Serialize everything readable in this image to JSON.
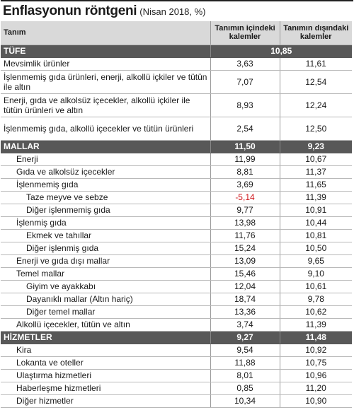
{
  "title": {
    "main": "Enflasyonun röntgeni",
    "sub": "(Nisan 2018, %)"
  },
  "header": {
    "col1": "Tanım",
    "col2": "Tanımın içindeki kalemler",
    "col3": "Tanımın dışındaki kalemler"
  },
  "tufe": {
    "label": "TÜFE",
    "value": "10,85"
  },
  "tufe_rows": [
    {
      "label": "Mevsimlik ürünler",
      "in": "3,63",
      "out": "11,61"
    },
    {
      "label": "İşlenmemiş gıda ürünleri, enerji, alkollü içkiler ve tütün ile altın",
      "in": "7,07",
      "out": "12,54"
    },
    {
      "label": "Enerji, gıda ve alkolsüz içecekler, alkollü içkiler ile tütün ürünleri ve altın",
      "in": "8,93",
      "out": "12,24"
    },
    {
      "label": "İşlenmemiş gıda, alkollü içecekler ve tütün ürünleri",
      "in": "2,54",
      "out": "12,50"
    }
  ],
  "mallar": {
    "label": "MALLAR",
    "in": "11,50",
    "out": "9,23"
  },
  "mallar_rows": [
    {
      "label": "Enerji",
      "in": "11,99",
      "out": "10,67",
      "level": 1
    },
    {
      "label": "Gıda ve alkolsüz içecekler",
      "in": "8,81",
      "out": "11,37",
      "level": 1
    },
    {
      "label": "İşlenmemiş gıda",
      "in": "3,69",
      "out": "11,65",
      "level": 1
    },
    {
      "label": "Taze meyve ve sebze",
      "in": "-5,14",
      "out": "11,39",
      "level": 2,
      "negative": true
    },
    {
      "label": "Diğer işlenmemiş gıda",
      "in": "9,77",
      "out": "10,91",
      "level": 2
    },
    {
      "label": "İşlenmiş gıda",
      "in": "13,98",
      "out": "10,44",
      "level": 1
    },
    {
      "label": "Ekmek ve tahıllar",
      "in": "11,76",
      "out": "10,81",
      "level": 2
    },
    {
      "label": "Diğer işlenmiş gıda",
      "in": "15,24",
      "out": "10,50",
      "level": 2
    },
    {
      "label": "Enerji ve gıda dışı mallar",
      "in": "13,09",
      "out": "9,65",
      "level": 1
    },
    {
      "label": "Temel mallar",
      "in": "15,46",
      "out": "9,10",
      "level": 1
    },
    {
      "label": "Giyim ve ayakkabı",
      "in": "12,04",
      "out": "10,61",
      "level": 2
    },
    {
      "label": "Dayanıklı mallar (Altın hariç)",
      "in": "18,74",
      "out": "9,78",
      "level": 2
    },
    {
      "label": "Diğer temel mallar",
      "in": "13,36",
      "out": "10,62",
      "level": 2
    },
    {
      "label": "Alkollü içecekler, tütün ve altın",
      "in": "3,74",
      "out": "11,39",
      "level": 1
    }
  ],
  "hizmetler": {
    "label": "HİZMETLER",
    "in": "9,27",
    "out": "11,48"
  },
  "hizmetler_rows": [
    {
      "label": "Kira",
      "in": "9,54",
      "out": "10,92",
      "level": 1
    },
    {
      "label": "Lokanta ve oteller",
      "in": "11,88",
      "out": "10,75",
      "level": 1
    },
    {
      "label": "Ulaştırma hizmetleri",
      "in": "8,01",
      "out": "10,96",
      "level": 1
    },
    {
      "label": "Haberleşme hizmetleri",
      "in": "0,85",
      "out": "11,20",
      "level": 1
    },
    {
      "label": "Diğer hizmetler",
      "in": "10,34",
      "out": "10,90",
      "level": 1
    }
  ],
  "colors": {
    "header_bg": "#d9d9d9",
    "section_bg": "#585858",
    "negative": "#d0161b"
  }
}
